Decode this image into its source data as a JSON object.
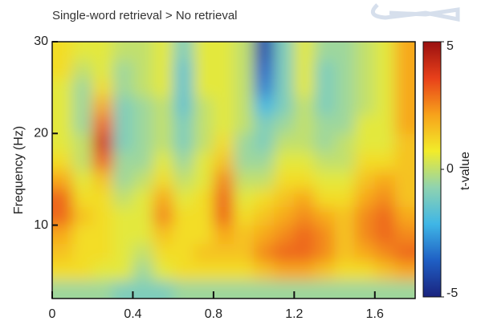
{
  "chart_data": {
    "type": "heatmap",
    "title": "Single-word retrieval > No retrieval",
    "y_label": "Frequency (Hz)",
    "colorbar_label": "t-value",
    "x": [
      0.05,
      0.15,
      0.25,
      0.35,
      0.45,
      0.55,
      0.65,
      0.75,
      0.85,
      0.95,
      1.05,
      1.15,
      1.25,
      1.35,
      1.45,
      1.55,
      1.65,
      1.75
    ],
    "y": [
      3,
      5,
      7,
      9,
      11,
      13,
      15,
      17,
      19,
      21,
      23,
      25,
      27,
      29
    ],
    "z": [
      [
        -0.5,
        -0.5,
        -0.5,
        -1,
        -1,
        -1,
        -0.5,
        -0.5,
        -0.5,
        -0.5,
        -0.5,
        -0.5,
        -0.5,
        -0.5,
        -0.5,
        -0.5,
        -0.5,
        -0.5
      ],
      [
        1,
        1,
        0.5,
        0.5,
        -0.5,
        0.5,
        1,
        1,
        1,
        1,
        1.5,
        2,
        2,
        1.5,
        1,
        1,
        1.5,
        2
      ],
      [
        1.5,
        1,
        1,
        0.5,
        0,
        1,
        1,
        1.5,
        1.5,
        1.5,
        2.5,
        3,
        3,
        2.5,
        1.5,
        2,
        2.5,
        3
      ],
      [
        2,
        1,
        1,
        0.5,
        0.5,
        1.5,
        1,
        1,
        2,
        1.5,
        2,
        2.5,
        3,
        2.5,
        1.5,
        2.5,
        3,
        2.5
      ],
      [
        3,
        1.5,
        1,
        0.5,
        0.5,
        2.5,
        1,
        1,
        3,
        1,
        1.5,
        2,
        2.5,
        2,
        1.5,
        2.5,
        3,
        2
      ],
      [
        3,
        1,
        1,
        0,
        0.5,
        2,
        0.5,
        1,
        3,
        0.5,
        1,
        1.5,
        2,
        1,
        1,
        2,
        2.5,
        1.5
      ],
      [
        2,
        0.5,
        1.5,
        -0.5,
        0,
        1,
        0,
        0.5,
        2.5,
        0,
        0,
        1,
        1,
        0.5,
        0.5,
        1.5,
        2,
        1.5
      ],
      [
        1,
        0,
        3,
        -0.5,
        -0.5,
        0.5,
        -0.5,
        0.5,
        1.5,
        -0.5,
        -0.5,
        0.5,
        0.5,
        0,
        0,
        1,
        1,
        1.5
      ],
      [
        0.5,
        0,
        4,
        -1,
        -0.5,
        0,
        -1,
        0,
        1,
        -0.5,
        -1,
        0,
        0,
        -0.5,
        0,
        0.5,
        0.5,
        1.5
      ],
      [
        0.5,
        -0.5,
        3,
        -1,
        -0.5,
        0,
        -1,
        0,
        0.5,
        0,
        -1,
        -0.5,
        0,
        -0.5,
        -0.5,
        0.5,
        0.5,
        2
      ],
      [
        0.5,
        -0.5,
        2,
        -1,
        -0.5,
        0,
        -1.5,
        0,
        0.5,
        0,
        -2,
        -1,
        0,
        -1,
        -0.5,
        0,
        0.5,
        2
      ],
      [
        0.5,
        -0.5,
        1,
        -0.5,
        0,
        0.5,
        -1.5,
        0.5,
        0.5,
        0,
        -3,
        -1,
        0.5,
        -1,
        -0.5,
        0,
        0.5,
        2
      ],
      [
        1,
        0,
        0.5,
        -0.5,
        0,
        0.5,
        -1.5,
        0.5,
        0.5,
        0,
        -3.5,
        -1,
        0.5,
        -1,
        -0.5,
        0,
        0.5,
        2
      ],
      [
        1,
        0.5,
        0.5,
        0,
        0,
        0.5,
        -1,
        0.5,
        0.5,
        0,
        -4,
        -1,
        0.5,
        -0.5,
        -0.5,
        0,
        0.5,
        2
      ]
    ],
    "xlim": [
      0,
      1.8
    ],
    "xticks": [
      0,
      0.4,
      0.8,
      1.2,
      1.6
    ],
    "ylim": [
      2,
      30
    ],
    "yticks": [
      10,
      20,
      30
    ],
    "clim": [
      -5,
      5
    ],
    "cticks": [
      -5,
      0,
      5
    ],
    "colormap": [
      "#1a237e",
      "#1f5fc4",
      "#3fb6e6",
      "#8fd3b0",
      "#f2ec2a",
      "#f7a21b",
      "#e8401a",
      "#9a1010"
    ]
  }
}
